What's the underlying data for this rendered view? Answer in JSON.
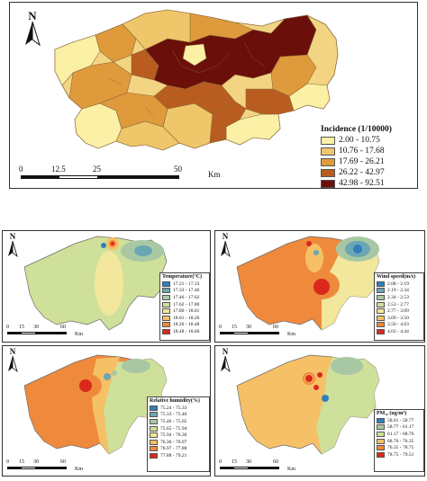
{
  "top_map": {
    "north_label": "N",
    "legend_title": "Incidence (1/10000)",
    "legend": [
      {
        "label": "2.00 - 10.75",
        "color": "#fbf0a6"
      },
      {
        "label": "10.76 - 17.68",
        "color": "#f0c66a"
      },
      {
        "label": "17.69 - 26.21",
        "color": "#df9a3c"
      },
      {
        "label": "26.22 - 42.97",
        "color": "#b95c20"
      },
      {
        "label": "42.98 - 92.51",
        "color": "#6b0f0b"
      }
    ],
    "scale_ticks": [
      "0",
      "12.5",
      "25",
      "50"
    ],
    "scale_unit": "Km"
  },
  "small_maps": [
    {
      "north_label": "N",
      "legend_title": "Temperature(°C)",
      "legend": [
        {
          "label": "17.21 - 17.33",
          "color": "#2e7fb8"
        },
        {
          "label": "17.33 - 17.46",
          "color": "#6aa6b4"
        },
        {
          "label": "17.46 - 17.62",
          "color": "#a8c8a4"
        },
        {
          "label": "17.62 - 17.80",
          "color": "#cfe09a"
        },
        {
          "label": "17.80 - 18.01",
          "color": "#f2e79c"
        },
        {
          "label": "18.01 - 18.26",
          "color": "#f6c067"
        },
        {
          "label": "18.26 - 18.48",
          "color": "#ef8a3c"
        },
        {
          "label": "18.48 - 18.66",
          "color": "#d9291c"
        }
      ],
      "scale_ticks": [
        "0",
        "15",
        "30",
        "60"
      ],
      "scale_unit": "Km"
    },
    {
      "north_label": "N",
      "legend_title": "Wind speed(m/s)",
      "legend": [
        {
          "label": "2.08 - 2.19",
          "color": "#2e7fb8"
        },
        {
          "label": "2.19 - 2.34",
          "color": "#6aa6b4"
        },
        {
          "label": "2.34 - 2.53",
          "color": "#a8c8a4"
        },
        {
          "label": "2.53 - 2.77",
          "color": "#cfe09a"
        },
        {
          "label": "2.77 - 3.09",
          "color": "#f2e79c"
        },
        {
          "label": "3.09 - 3.50",
          "color": "#f6c067"
        },
        {
          "label": "3.50 - 4.03",
          "color": "#ef8a3c"
        },
        {
          "label": "4.03 - 4.44",
          "color": "#d9291c"
        }
      ],
      "scale_ticks": [
        "0",
        "15",
        "30",
        "60"
      ],
      "scale_unit": "Km"
    },
    {
      "north_label": "N",
      "legend_title": "Relative humidity(%)",
      "legend": [
        {
          "label": "75.24 - 75.33",
          "color": "#2e7fb8"
        },
        {
          "label": "75.33 - 75.46",
          "color": "#6aa6b4"
        },
        {
          "label": "75.46 - 75.65",
          "color": "#a8c8a4"
        },
        {
          "label": "75.65 - 75.94",
          "color": "#cfe09a"
        },
        {
          "label": "75.94 - 76.36",
          "color": "#f2e79c"
        },
        {
          "label": "76.36 - 76.97",
          "color": "#f6c067"
        },
        {
          "label": "76.97 - 77.88",
          "color": "#ef8a3c"
        },
        {
          "label": "77.88 - 79.21",
          "color": "#d9291c"
        }
      ],
      "scale_ticks": [
        "0",
        "15",
        "30",
        "60"
      ],
      "scale_unit": "Km"
    },
    {
      "north_label": "N",
      "legend_title": "PM₁₀ (ug/m³)",
      "legend": [
        {
          "label": "58.01 - 58.77",
          "color": "#2e7fb8"
        },
        {
          "label": "58.77 - 61.17",
          "color": "#a8c8a4"
        },
        {
          "label": "61.17 - 68.76",
          "color": "#cfe09a"
        },
        {
          "label": "68.76 - 76.35",
          "color": "#f6c067"
        },
        {
          "label": "76.35 - 78.75",
          "color": "#ef8a3c"
        },
        {
          "label": "78.75 - 79.51",
          "color": "#d9291c"
        }
      ],
      "scale_ticks": [
        "0",
        "15",
        "30",
        "60"
      ],
      "scale_unit": "Km"
    }
  ]
}
